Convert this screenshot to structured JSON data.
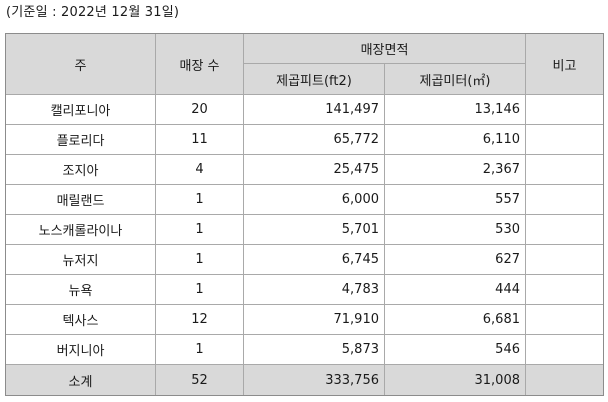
{
  "base_date": "(기준일 : 2022년 12월 31일)",
  "headers": {
    "state": "주",
    "store_count": "매장 수",
    "area_group": "매장면적",
    "sqft": "제곱피트(ft2)",
    "sqm": "제곱미터(㎡)",
    "note": "비고"
  },
  "rows": [
    {
      "state": "캘리포니아",
      "count": "20",
      "sqft": "141,497",
      "sqm": "13,146",
      "note": ""
    },
    {
      "state": "플로리다",
      "count": "11",
      "sqft": "65,772",
      "sqm": "6,110",
      "note": ""
    },
    {
      "state": "조지아",
      "count": "4",
      "sqft": "25,475",
      "sqm": "2,367",
      "note": ""
    },
    {
      "state": "매릴랜드",
      "count": "1",
      "sqft": "6,000",
      "sqm": "557",
      "note": ""
    },
    {
      "state": "노스캐롤라이나",
      "count": "1",
      "sqft": "5,701",
      "sqm": "530",
      "note": ""
    },
    {
      "state": "뉴저지",
      "count": "1",
      "sqft": "6,745",
      "sqm": "627",
      "note": ""
    },
    {
      "state": "뉴욕",
      "count": "1",
      "sqft": "4,783",
      "sqm": "444",
      "note": ""
    },
    {
      "state": "텍사스",
      "count": "12",
      "sqft": "71,910",
      "sqm": "6,681",
      "note": ""
    },
    {
      "state": "버지니아",
      "count": "1",
      "sqft": "5,873",
      "sqm": "546",
      "note": ""
    }
  ],
  "total": {
    "label": "소계",
    "count": "52",
    "sqft": "333,756",
    "sqm": "31,008",
    "note": ""
  }
}
